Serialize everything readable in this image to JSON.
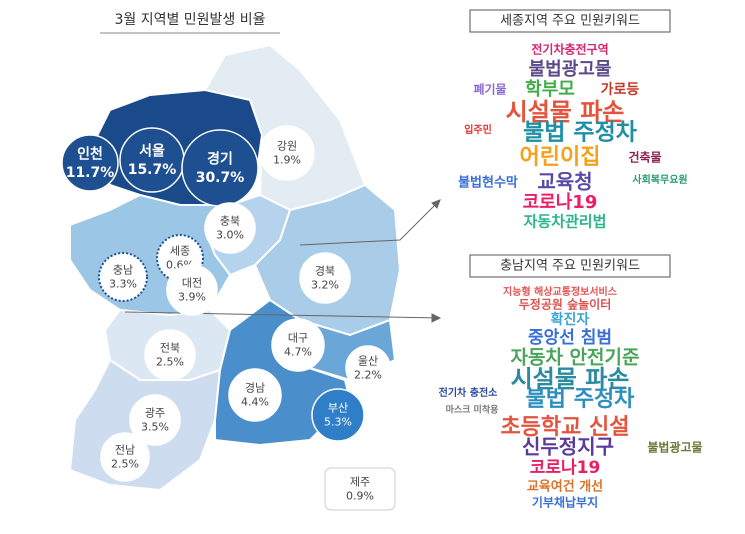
{
  "title": "3월 지역별 민원발생 비율",
  "map": {
    "regions": [
      {
        "name": "인천",
        "share": "11.7%"
      },
      {
        "name": "서울",
        "share": "15.7%"
      },
      {
        "name": "경기",
        "share": "30.7%"
      },
      {
        "name": "강원",
        "share": "1.9%"
      },
      {
        "name": "충북",
        "share": "3.0%"
      },
      {
        "name": "세종",
        "share": "0.6%"
      },
      {
        "name": "충남",
        "share": "3.3%"
      },
      {
        "name": "대전",
        "share": "3.9%"
      },
      {
        "name": "경북",
        "share": "3.2%"
      },
      {
        "name": "대구",
        "share": "4.7%"
      },
      {
        "name": "전북",
        "share": "2.5%"
      },
      {
        "name": "울산",
        "share": "2.2%"
      },
      {
        "name": "경남",
        "share": "4.4%"
      },
      {
        "name": "부산",
        "share": "5.3%"
      },
      {
        "name": "광주",
        "share": "3.5%"
      },
      {
        "name": "전남",
        "share": "2.5%"
      },
      {
        "name": "제주",
        "share": "0.9%"
      }
    ]
  },
  "keywords": [
    {
      "title": "세종지역 주요 민원키워드",
      "words": [
        "전기차충전구역",
        "불법광고물",
        "폐기물",
        "학부모",
        "가로등",
        "시설물 파손",
        "입주민",
        "불법 주정차",
        "어린이집",
        "건축물",
        "불법현수막",
        "교육청",
        "사회복무요원",
        "코로나19",
        "자동차관리법"
      ]
    },
    {
      "title": "충남지역 주요 민원키워드",
      "words": [
        "지능형 해상교통정보서비스",
        "두정공원 숲놀이터",
        "확진자",
        "중앙선 침범",
        "자동차 안전기준",
        "시설물 파손",
        "전기차 충전소",
        "불법 주정차",
        "마스크 미착용",
        "초등학교 신설",
        "신두정지구",
        "불법광고물",
        "코로나19",
        "교육여건 개선",
        "기부채납부지"
      ]
    }
  ]
}
